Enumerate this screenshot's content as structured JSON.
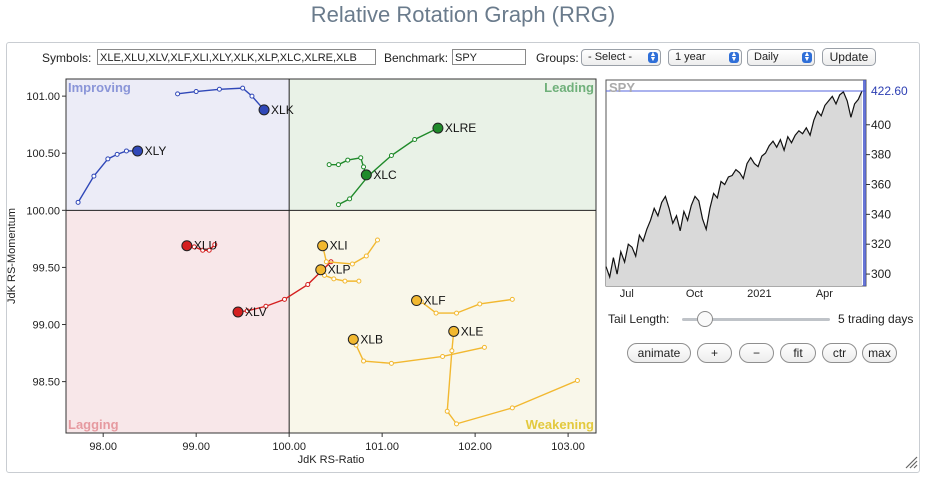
{
  "title": "Relative Rotation Graph (RRG)",
  "controls": {
    "symbols_label": "Symbols:",
    "symbols_value": "XLE,XLU,XLV,XLF,XLI,XLY,XLK,XLP,XLC,XLRE,XLB",
    "benchmark_label": "Benchmark:",
    "benchmark_value": "SPY",
    "groups_label": "Groups:",
    "groups_value": "- Select -",
    "period_value": "1 year",
    "interval_value": "Daily",
    "update_label": "Update"
  },
  "rrg": {
    "quadrants": {
      "improving": "Improving",
      "leading": "Leading",
      "lagging": "Lagging",
      "weakening": "Weakening"
    },
    "quadrant_colors": {
      "improving": "#ececf7",
      "leading": "#e9f2e7",
      "lagging": "#f8e7e9",
      "weakening": "#f9f7ea",
      "improving_text": "#8a95d8",
      "leading_text": "#6fb07a",
      "lagging_text": "#e69aa0",
      "weakening_text": "#e3c93e"
    },
    "xlabel": "JdK RS-Ratio",
    "ylabel": "JdK RS-Momentum",
    "x_ticks": [
      "98.00",
      "99.00",
      "100.00",
      "101.00",
      "102.00",
      "103.00"
    ],
    "y_ticks": [
      "101.00",
      "100.50",
      "100.00",
      "99.50",
      "99.00",
      "98.50"
    ]
  },
  "chart_data": [
    {
      "type": "scatter",
      "title": "",
      "xlabel": "JdK RS-Ratio",
      "ylabel": "JdK RS-Momentum",
      "xlim": [
        97.6,
        103.3
      ],
      "ylim": [
        98.05,
        101.15
      ],
      "tail_length": 5,
      "series": [
        {
          "name": "XLK",
          "color": "#3048b8",
          "tail": [
            [
              98.8,
              101.02
            ],
            [
              99.0,
              101.04
            ],
            [
              99.25,
              101.06
            ],
            [
              99.5,
              101.07
            ],
            [
              99.6,
              101.0
            ],
            [
              99.73,
              100.88
            ]
          ]
        },
        {
          "name": "XLY",
          "color": "#3048b8",
          "tail": [
            [
              97.73,
              100.07
            ],
            [
              97.9,
              100.3
            ],
            [
              98.05,
              100.45
            ],
            [
              98.15,
              100.49
            ],
            [
              98.25,
              100.52
            ],
            [
              98.37,
              100.52
            ]
          ]
        },
        {
          "name": "XLRE",
          "color": "#1f8a2a",
          "tail": [
            [
              100.53,
              100.05
            ],
            [
              100.65,
              100.1
            ],
            [
              100.85,
              100.3
            ],
            [
              101.1,
              100.48
            ],
            [
              101.35,
              100.62
            ],
            [
              101.6,
              100.72
            ]
          ]
        },
        {
          "name": "XLC",
          "color": "#1f8a2a",
          "tail": [
            [
              100.43,
              100.4
            ],
            [
              100.53,
              100.4
            ],
            [
              100.63,
              100.44
            ],
            [
              100.77,
              100.46
            ],
            [
              100.8,
              100.38
            ],
            [
              100.83,
              100.31
            ]
          ]
        },
        {
          "name": "XLU",
          "color": "#d42020",
          "tail": [
            [
              99.2,
              99.7
            ],
            [
              99.14,
              99.65
            ],
            [
              99.07,
              99.65
            ],
            [
              98.98,
              99.68
            ],
            [
              98.9,
              99.69
            ]
          ]
        },
        {
          "name": "XLV",
          "color": "#d42020",
          "tail": [
            [
              100.45,
              99.55
            ],
            [
              100.2,
              99.35
            ],
            [
              99.95,
              99.22
            ],
            [
              99.75,
              99.16
            ],
            [
              99.55,
              99.12
            ],
            [
              99.45,
              99.11
            ]
          ]
        },
        {
          "name": "XLI",
          "color": "#f2b830",
          "tail": [
            [
              100.95,
              99.74
            ],
            [
              100.83,
              99.6
            ],
            [
              100.68,
              99.53
            ],
            [
              100.4,
              99.55
            ],
            [
              100.36,
              99.69
            ]
          ]
        },
        {
          "name": "XLP",
          "color": "#f2b830",
          "tail": [
            [
              100.75,
              99.38
            ],
            [
              100.6,
              99.38
            ],
            [
              100.48,
              99.4
            ],
            [
              100.38,
              99.43
            ],
            [
              100.34,
              99.48
            ]
          ]
        },
        {
          "name": "XLF",
          "color": "#f2b830",
          "tail": [
            [
              102.4,
              99.22
            ],
            [
              102.05,
              99.18
            ],
            [
              101.8,
              99.1
            ],
            [
              101.58,
              99.1
            ],
            [
              101.42,
              99.2
            ],
            [
              101.37,
              99.21
            ]
          ]
        },
        {
          "name": "XLB",
          "color": "#f2b830",
          "tail": [
            [
              102.1,
              98.8
            ],
            [
              101.65,
              98.72
            ],
            [
              101.1,
              98.66
            ],
            [
              100.8,
              98.68
            ],
            [
              100.72,
              98.82
            ],
            [
              100.69,
              98.87
            ]
          ]
        },
        {
          "name": "XLE",
          "color": "#f2b830",
          "tail": [
            [
              103.1,
              98.51
            ],
            [
              102.4,
              98.27
            ],
            [
              101.8,
              98.13
            ],
            [
              101.7,
              98.24
            ],
            [
              101.75,
              98.77
            ],
            [
              101.77,
              98.94
            ]
          ]
        }
      ]
    },
    {
      "type": "area",
      "title": "SPY",
      "x_ticks": [
        "Jul",
        "Oct",
        "2021",
        "Apr"
      ],
      "y_ticks": [
        300,
        320,
        340,
        360,
        380,
        400
      ],
      "ylim": [
        292,
        430
      ],
      "last_value": "422.60",
      "values": [
        305,
        298,
        311,
        300,
        315,
        308,
        320,
        318,
        312,
        326,
        322,
        330,
        336,
        344,
        339,
        348,
        352,
        344,
        334,
        339,
        329,
        342,
        336,
        346,
        352,
        349,
        337,
        330,
        344,
        354,
        351,
        362,
        360,
        365,
        366,
        370,
        368,
        364,
        374,
        378,
        374,
        372,
        379,
        381,
        386,
        389,
        385,
        390,
        383,
        392,
        388,
        393,
        396,
        394,
        398,
        393,
        403,
        409,
        406,
        413,
        416,
        419,
        414,
        420,
        422,
        416,
        405,
        414,
        417,
        422.6
      ]
    }
  ],
  "sidepanel": {
    "tail_label": "Tail Length:",
    "tail_value": "5 trading days",
    "buttons": {
      "animate": "animate",
      "plus": "+",
      "minus": "−",
      "fit": "fit",
      "ctr": "ctr",
      "max": "max"
    }
  }
}
